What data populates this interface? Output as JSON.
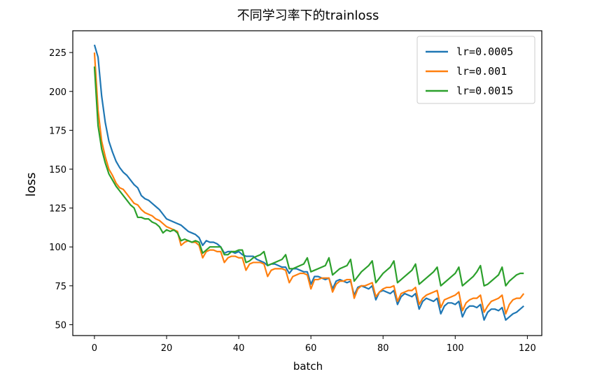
{
  "chart_data": {
    "type": "line",
    "title": "不同学习率下的trainloss",
    "xlabel": "batch",
    "ylabel": "loss",
    "xlim": [
      -6,
      124
    ],
    "ylim": [
      43,
      239
    ],
    "x_ticks": [
      0,
      20,
      40,
      60,
      80,
      100,
      120
    ],
    "y_ticks": [
      50,
      75,
      100,
      125,
      150,
      175,
      200,
      225
    ],
    "grid": false,
    "legend_position": "top-right",
    "series": [
      {
        "name": "lr=0.0005",
        "color": "#1f77b4",
        "values": [
          230.0,
          222.0,
          197.0,
          180.0,
          168.0,
          161.0,
          155.0,
          151.0,
          148.0,
          146.0,
          143.0,
          140.0,
          138.0,
          133.0,
          131.0,
          130.0,
          128.0,
          126.0,
          124.0,
          121.0,
          118.0,
          117.0,
          116.0,
          115.0,
          114.0,
          112.0,
          110.0,
          109.0,
          108.0,
          106.0,
          101.0,
          104.0,
          103.0,
          103.0,
          102.0,
          100.0,
          96.0,
          97.0,
          97.0,
          96.0,
          97.0,
          95.0,
          94.0,
          94.0,
          94.0,
          92.0,
          91.0,
          90.0,
          88.0,
          89.0,
          89.0,
          88.0,
          87.0,
          87.0,
          83.0,
          86.0,
          86.0,
          85.0,
          84.0,
          84.0,
          76.0,
          81.0,
          81.0,
          80.0,
          79.0,
          80.0,
          73.0,
          78.0,
          79.0,
          78.0,
          77.0,
          78.0,
          69.0,
          74.0,
          75.0,
          74.0,
          73.0,
          75.0,
          66.0,
          71.0,
          72.0,
          71.0,
          70.0,
          72.0,
          63.0,
          68.0,
          70.0,
          69.0,
          68.0,
          70.0,
          60.0,
          65.0,
          67.0,
          66.0,
          65.0,
          67.0,
          57.0,
          62.0,
          64.0,
          64.0,
          63.0,
          65.0,
          55.0,
          60.0,
          62.0,
          62.0,
          61.0,
          63.0,
          53.0,
          58.0,
          60.0,
          60.0,
          59.0,
          61.0,
          53.0,
          55.0,
          57.0,
          58.0,
          60.0,
          62.0
        ]
      },
      {
        "name": "lr=0.001",
        "color": "#ff7f0e",
        "values": [
          225.0,
          188.0,
          168.0,
          158.0,
          150.0,
          146.0,
          141.0,
          138.0,
          137.0,
          134.0,
          131.0,
          128.0,
          127.0,
          124.0,
          122.0,
          121.0,
          120.0,
          118.0,
          117.0,
          115.0,
          113.0,
          112.0,
          111.0,
          110.0,
          101.0,
          103.0,
          104.0,
          103.0,
          103.0,
          101.0,
          93.0,
          97.0,
          98.0,
          98.0,
          97.0,
          97.0,
          90.0,
          93.0,
          94.0,
          94.0,
          93.0,
          93.0,
          85.0,
          89.0,
          90.0,
          90.0,
          90.0,
          89.0,
          81.0,
          85.0,
          86.0,
          86.0,
          86.0,
          85.0,
          77.0,
          81.0,
          82.0,
          83.0,
          83.0,
          82.0,
          73.0,
          79.0,
          79.0,
          80.0,
          80.0,
          80.0,
          71.0,
          76.0,
          78.0,
          78.0,
          79.0,
          79.0,
          67.0,
          73.0,
          75.0,
          75.0,
          76.0,
          77.0,
          68.0,
          71.0,
          73.0,
          74.0,
          74.0,
          75.0,
          65.0,
          70.0,
          71.0,
          72.0,
          72.0,
          74.0,
          63.0,
          67.0,
          69.0,
          70.0,
          71.0,
          72.0,
          61.0,
          66.0,
          67.0,
          68.0,
          69.0,
          71.0,
          59.0,
          64.0,
          66.0,
          67.0,
          67.0,
          69.0,
          58.0,
          62.0,
          65.0,
          66.0,
          67.0,
          69.0,
          57.0,
          63.0,
          66.0,
          67.0,
          67.0,
          70.0
        ]
      },
      {
        "name": "lr=0.0015",
        "color": "#2ca02c",
        "values": [
          216.0,
          178.0,
          163.0,
          154.0,
          147.0,
          143.0,
          139.0,
          136.0,
          133.0,
          130.0,
          127.0,
          125.0,
          119.0,
          119.0,
          118.0,
          118.0,
          116.0,
          115.0,
          113.0,
          109.0,
          111.0,
          110.0,
          111.0,
          109.0,
          104.0,
          105.0,
          104.0,
          103.0,
          104.0,
          103.0,
          96.0,
          98.0,
          100.0,
          100.0,
          100.0,
          100.0,
          95.0,
          95.0,
          97.0,
          97.0,
          98.0,
          98.0,
          90.0,
          91.0,
          93.0,
          94.0,
          95.0,
          97.0,
          88.0,
          89.0,
          90.0,
          91.0,
          92.0,
          95.0,
          86.0,
          86.0,
          87.0,
          88.0,
          89.0,
          93.0,
          84.0,
          85.0,
          86.0,
          87.0,
          88.0,
          93.0,
          82.0,
          84.0,
          86.0,
          87.0,
          88.0,
          92.0,
          78.0,
          81.0,
          84.0,
          86.0,
          88.0,
          91.0,
          77.0,
          80.0,
          83.0,
          85.0,
          87.0,
          91.0,
          77.0,
          79.0,
          81.0,
          83.0,
          85.0,
          89.0,
          76.0,
          78.0,
          80.0,
          82.0,
          84.0,
          87.0,
          75.0,
          77.0,
          79.0,
          81.0,
          83.0,
          87.0,
          75.0,
          77.0,
          79.0,
          81.0,
          84.0,
          88.0,
          75.0,
          76.0,
          78.0,
          80.0,
          82.0,
          87.0,
          75.0,
          78.0,
          80.0,
          82.0,
          83.0,
          83.0
        ]
      }
    ]
  }
}
